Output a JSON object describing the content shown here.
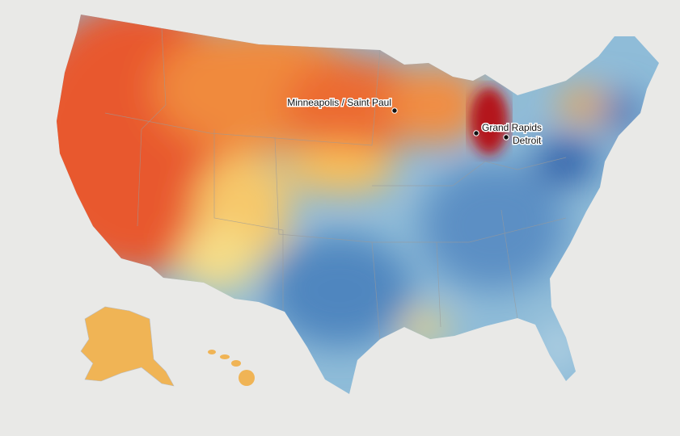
{
  "map": {
    "cities": [
      "Minneapolis / Saint Paul",
      "Grand Rapids",
      "Detroit"
    ]
  }
}
